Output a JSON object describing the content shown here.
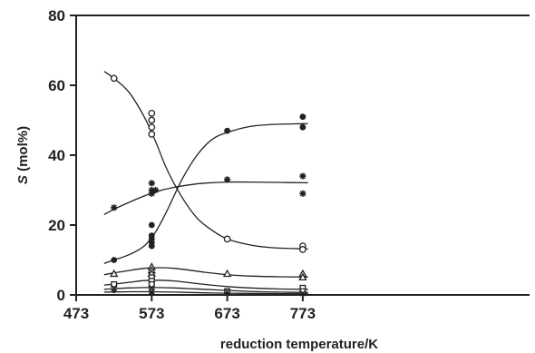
{
  "chart_data": {
    "type": "scatter",
    "title": "",
    "xlabel": "reduction temperature/K",
    "ylabel_italic": "S",
    "ylabel_rest": " (mol%)",
    "xlim": [
      473,
      783
    ],
    "ylim": [
      0,
      80
    ],
    "xticks": [
      473,
      573,
      673,
      773
    ],
    "yticks": [
      0,
      20,
      40,
      60,
      80
    ],
    "grid": false,
    "legend": "none",
    "color": "#222222",
    "series": [
      {
        "marker": "open-circle",
        "points": [
          [
            523,
            62
          ],
          [
            573,
            52
          ],
          [
            573,
            50
          ],
          [
            573,
            48
          ],
          [
            573,
            46
          ],
          [
            673,
            16
          ],
          [
            773,
            14
          ],
          [
            773,
            13
          ]
        ],
        "curve": [
          [
            510,
            64
          ],
          [
            523,
            62
          ],
          [
            543,
            58
          ],
          [
            563,
            51
          ],
          [
            578,
            44
          ],
          [
            593,
            36
          ],
          [
            613,
            28
          ],
          [
            633,
            22
          ],
          [
            653,
            18.5
          ],
          [
            673,
            16
          ],
          [
            703,
            14.3
          ],
          [
            733,
            13.5
          ],
          [
            773,
            13.2
          ],
          [
            780,
            13.2
          ]
        ]
      },
      {
        "marker": "filled-circle",
        "points": [
          [
            523,
            10
          ],
          [
            573,
            20
          ],
          [
            573,
            17
          ],
          [
            573,
            16
          ],
          [
            573,
            15
          ],
          [
            573,
            14
          ],
          [
            673,
            47
          ],
          [
            773,
            51
          ],
          [
            773,
            48
          ]
        ],
        "curve": [
          [
            510,
            9
          ],
          [
            523,
            10
          ],
          [
            543,
            11.5
          ],
          [
            563,
            14
          ],
          [
            578,
            18
          ],
          [
            593,
            24
          ],
          [
            613,
            33
          ],
          [
            633,
            40
          ],
          [
            653,
            44.5
          ],
          [
            673,
            46.5
          ],
          [
            703,
            48.2
          ],
          [
            733,
            48.8
          ],
          [
            773,
            49
          ],
          [
            780,
            49
          ]
        ]
      },
      {
        "marker": "star",
        "points": [
          [
            523,
            25
          ],
          [
            573,
            32
          ],
          [
            573,
            30
          ],
          [
            573,
            29
          ],
          [
            578,
            30
          ],
          [
            673,
            33
          ],
          [
            773,
            34
          ],
          [
            773,
            29
          ]
        ],
        "curve": [
          [
            510,
            23
          ],
          [
            523,
            24.5
          ],
          [
            543,
            26.5
          ],
          [
            563,
            28.3
          ],
          [
            583,
            29.8
          ],
          [
            603,
            30.8
          ],
          [
            623,
            31.5
          ],
          [
            643,
            32
          ],
          [
            673,
            32.3
          ],
          [
            703,
            32.3
          ],
          [
            743,
            32.2
          ],
          [
            780,
            32.1
          ]
        ]
      },
      {
        "marker": "open-triangle",
        "points": [
          [
            523,
            6
          ],
          [
            573,
            8
          ],
          [
            573,
            7
          ],
          [
            573,
            6
          ],
          [
            673,
            6
          ],
          [
            773,
            6
          ],
          [
            773,
            5
          ]
        ],
        "curve": [
          [
            510,
            5.8
          ],
          [
            523,
            6.3
          ],
          [
            543,
            7
          ],
          [
            563,
            7.6
          ],
          [
            583,
            7.8
          ],
          [
            603,
            7.6
          ],
          [
            623,
            7.1
          ],
          [
            643,
            6.5
          ],
          [
            673,
            5.8
          ],
          [
            703,
            5.4
          ],
          [
            743,
            5.2
          ],
          [
            780,
            5.1
          ]
        ]
      },
      {
        "marker": "open-square",
        "points": [
          [
            523,
            3
          ],
          [
            573,
            5
          ],
          [
            573,
            4
          ],
          [
            573,
            3
          ],
          [
            673,
            1
          ],
          [
            773,
            2
          ],
          [
            773,
            1
          ]
        ],
        "curve": [
          [
            510,
            2.8
          ],
          [
            523,
            3.1
          ],
          [
            543,
            3.6
          ],
          [
            563,
            4.1
          ],
          [
            583,
            4.2
          ],
          [
            603,
            4
          ],
          [
            623,
            3.5
          ],
          [
            643,
            3
          ],
          [
            673,
            2.4
          ],
          [
            703,
            2
          ],
          [
            743,
            1.7
          ],
          [
            780,
            1.6
          ]
        ]
      },
      {
        "marker": "cross",
        "points": [
          [
            523,
            2
          ],
          [
            573,
            2
          ],
          [
            573,
            1
          ],
          [
            673,
            1
          ],
          [
            773,
            0.5
          ]
        ],
        "curve": [
          [
            510,
            1.6
          ],
          [
            523,
            1.8
          ],
          [
            543,
            2
          ],
          [
            563,
            2.1
          ],
          [
            583,
            2.1
          ],
          [
            603,
            2
          ],
          [
            623,
            1.8
          ],
          [
            643,
            1.6
          ],
          [
            673,
            1.3
          ],
          [
            703,
            1
          ],
          [
            743,
            0.8
          ],
          [
            780,
            0.7
          ]
        ]
      },
      {
        "marker": "small-dot",
        "points": [
          [
            523,
            1
          ],
          [
            573,
            0.8
          ],
          [
            573,
            0.5
          ],
          [
            673,
            0.5
          ],
          [
            773,
            0.3
          ]
        ],
        "curve": [
          [
            510,
            0.8
          ],
          [
            543,
            0.9
          ],
          [
            573,
            0.9
          ],
          [
            603,
            0.8
          ],
          [
            643,
            0.6
          ],
          [
            673,
            0.5
          ],
          [
            723,
            0.4
          ],
          [
            780,
            0.3
          ]
        ]
      }
    ]
  }
}
